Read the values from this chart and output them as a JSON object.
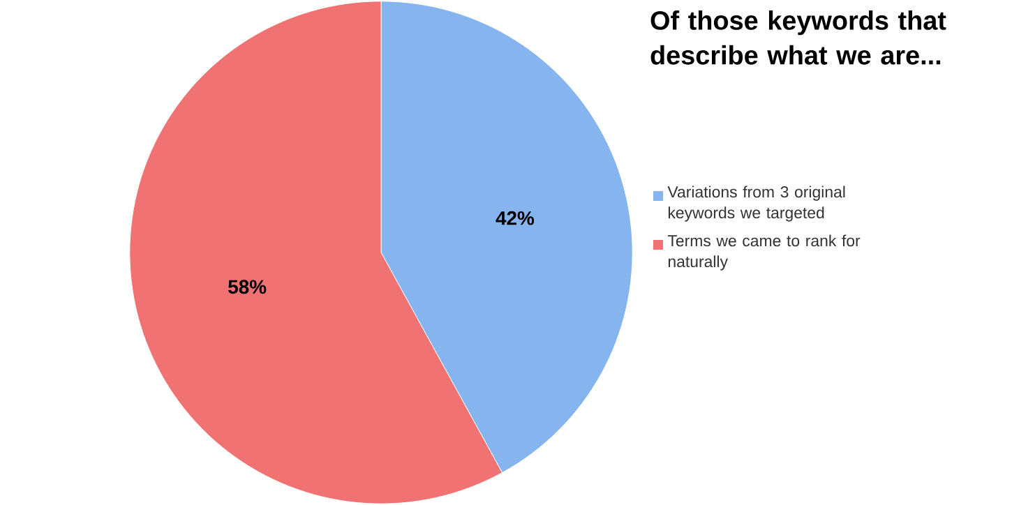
{
  "chart_data": {
    "type": "pie",
    "title": "Of  those keywords that describe what we are...",
    "categories": [
      "Variations from 3 original keywords we targeted",
      "Terms we came to rank for naturally"
    ],
    "values": [
      42,
      58
    ],
    "value_labels": [
      "42%",
      "58%"
    ],
    "colors": [
      "#86b4ee",
      "#f07272"
    ],
    "legend": "right"
  }
}
